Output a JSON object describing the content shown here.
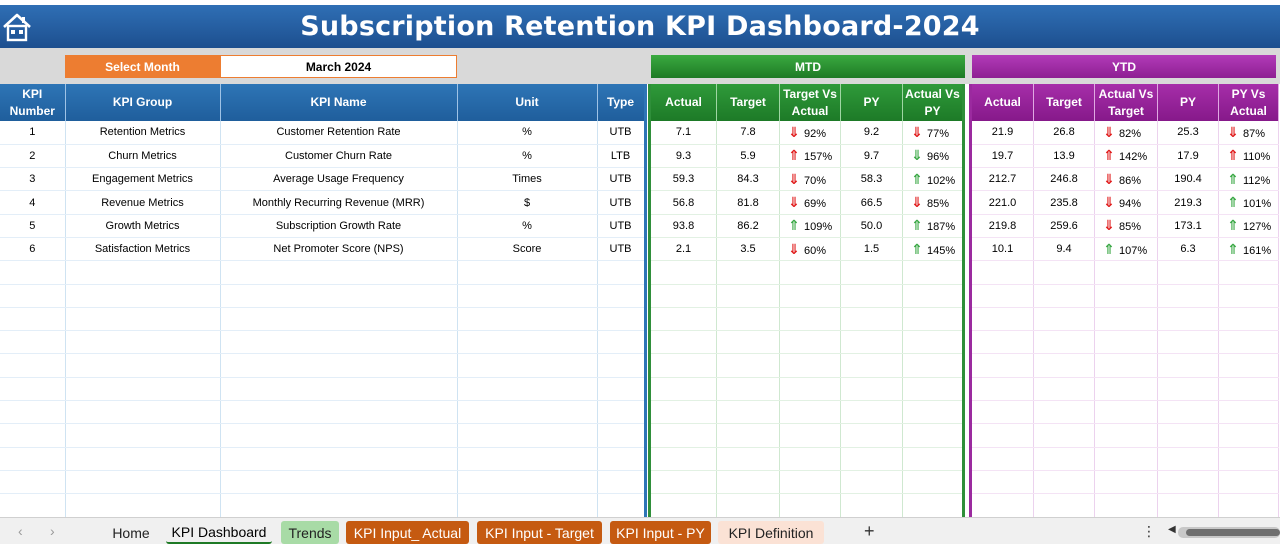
{
  "title": "Subscription Retention KPI Dashboard-2024",
  "select_month": {
    "label": "Select Month",
    "value": "March 2024"
  },
  "mtd_label": "MTD",
  "ytd_label": "YTD",
  "left_headers": [
    "KPI Number",
    "KPI Group",
    "KPI Name",
    "Unit",
    "Type"
  ],
  "mtd_headers": [
    "Actual",
    "Target",
    "Target Vs Actual",
    "PY",
    "Actual Vs PY"
  ],
  "ytd_headers": [
    "Actual",
    "Target",
    "Actual Vs Target",
    "PY",
    "PY Vs Actual"
  ],
  "rows": [
    {
      "num": "1",
      "group": "Retention Metrics",
      "name": "Customer Retention Rate",
      "unit": "%",
      "type": "UTB",
      "mtd": {
        "actual": "7.1",
        "target": "7.8",
        "tva_arrow": "down-red",
        "tva": "92%",
        "py": "9.2",
        "avp_arrow": "down-red",
        "avp": "77%"
      },
      "ytd": {
        "actual": "21.9",
        "target": "26.8",
        "avt_arrow": "down-red",
        "avt": "82%",
        "py": "25.3",
        "pva_arrow": "down-red",
        "pva": "87%"
      }
    },
    {
      "num": "2",
      "group": "Churn Metrics",
      "name": "Customer Churn Rate",
      "unit": "%",
      "type": "LTB",
      "mtd": {
        "actual": "9.3",
        "target": "5.9",
        "tva_arrow": "up-red",
        "tva": "157%",
        "py": "9.7",
        "avp_arrow": "down-green",
        "avp": "96%"
      },
      "ytd": {
        "actual": "19.7",
        "target": "13.9",
        "avt_arrow": "up-red",
        "avt": "142%",
        "py": "17.9",
        "pva_arrow": "up-red",
        "pva": "110%"
      }
    },
    {
      "num": "3",
      "group": "Engagement Metrics",
      "name": "Average Usage Frequency",
      "unit": "Times",
      "type": "UTB",
      "mtd": {
        "actual": "59.3",
        "target": "84.3",
        "tva_arrow": "down-red",
        "tva": "70%",
        "py": "58.3",
        "avp_arrow": "up-green",
        "avp": "102%"
      },
      "ytd": {
        "actual": "212.7",
        "target": "246.8",
        "avt_arrow": "down-red",
        "avt": "86%",
        "py": "190.4",
        "pva_arrow": "up-green",
        "pva": "112%"
      }
    },
    {
      "num": "4",
      "group": "Revenue Metrics",
      "name": "Monthly Recurring Revenue (MRR)",
      "unit": "$",
      "type": "UTB",
      "mtd": {
        "actual": "56.8",
        "target": "81.8",
        "tva_arrow": "down-red",
        "tva": "69%",
        "py": "66.5",
        "avp_arrow": "down-red",
        "avp": "85%"
      },
      "ytd": {
        "actual": "221.0",
        "target": "235.8",
        "avt_arrow": "down-red",
        "avt": "94%",
        "py": "219.3",
        "pva_arrow": "up-green",
        "pva": "101%"
      }
    },
    {
      "num": "5",
      "group": "Growth Metrics",
      "name": "Subscription Growth Rate",
      "unit": "%",
      "type": "UTB",
      "mtd": {
        "actual": "93.8",
        "target": "86.2",
        "tva_arrow": "up-green",
        "tva": "109%",
        "py": "50.0",
        "avp_arrow": "up-green",
        "avp": "187%"
      },
      "ytd": {
        "actual": "219.8",
        "target": "259.6",
        "avt_arrow": "down-red",
        "avt": "85%",
        "py": "173.1",
        "pva_arrow": "up-green",
        "pva": "127%"
      }
    },
    {
      "num": "6",
      "group": "Satisfaction Metrics",
      "name": "Net Promoter Score (NPS)",
      "unit": "Score",
      "type": "UTB",
      "mtd": {
        "actual": "2.1",
        "target": "3.5",
        "tva_arrow": "down-red",
        "tva": "60%",
        "py": "1.5",
        "avp_arrow": "up-green",
        "avp": "145%"
      },
      "ytd": {
        "actual": "10.1",
        "target": "9.4",
        "avt_arrow": "up-green",
        "avt": "107%",
        "py": "6.3",
        "pva_arrow": "up-green",
        "pva": "161%"
      }
    }
  ],
  "tabs": [
    "Home",
    "KPI Dashboard",
    "Trends",
    "KPI Input_ Actual",
    "KPI Input - Target",
    "KPI Input - PY",
    "KPI Definition"
  ],
  "icons": {
    "home": "home-icon",
    "add_sheet": "plus-icon",
    "more": "vertical-ellipsis-icon"
  },
  "colors": {
    "title_blue": "#1d4f8f",
    "orange": "#ed7d31",
    "mtd_green": "#1e7a25",
    "ytd_purple": "#8e1f93",
    "arrow_red": "#e01c1c",
    "arrow_green": "#3aa845"
  }
}
